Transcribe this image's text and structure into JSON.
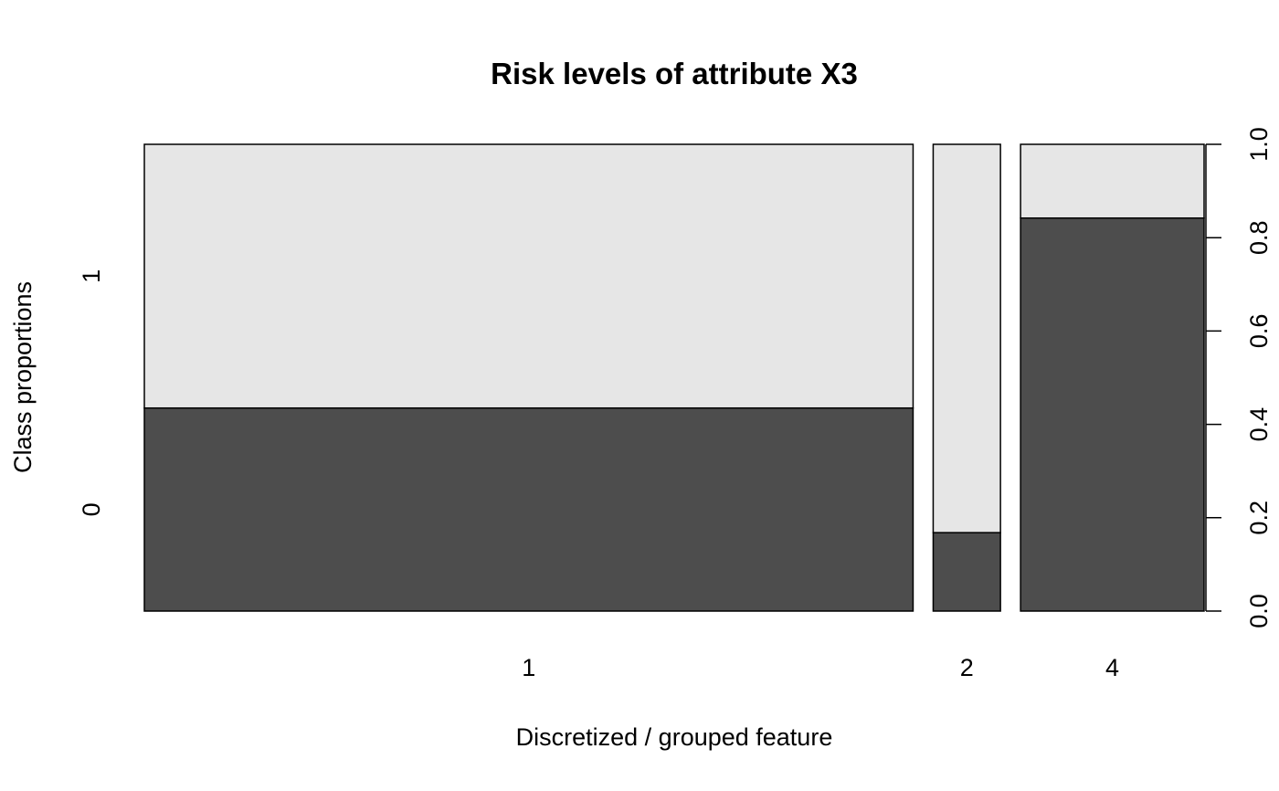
{
  "chart_data": {
    "type": "bar",
    "subtype": "spineplot",
    "title": "Risk levels of attribute X3",
    "xlabel": "Discretized / grouped feature",
    "ylabel": "Class proportions",
    "categories": [
      "1",
      "2",
      "4"
    ],
    "category_widths": [
      0.754,
      0.066,
      0.18
    ],
    "classes": [
      "0",
      "1"
    ],
    "series": [
      {
        "name": "0",
        "color": "#4d4d4d",
        "values": [
          0.435,
          0.168,
          0.842
        ]
      },
      {
        "name": "1",
        "color": "#e6e6e6",
        "values": [
          0.565,
          0.832,
          0.158
        ]
      }
    ],
    "right_axis": {
      "ticks": [
        0.0,
        0.2,
        0.4,
        0.6,
        0.8,
        1.0
      ],
      "tick_labels": [
        "0.0",
        "0.2",
        "0.4",
        "0.6",
        "0.8",
        "1.0"
      ]
    },
    "ylim": [
      0,
      1
    ],
    "grid": false,
    "legend": "none"
  }
}
